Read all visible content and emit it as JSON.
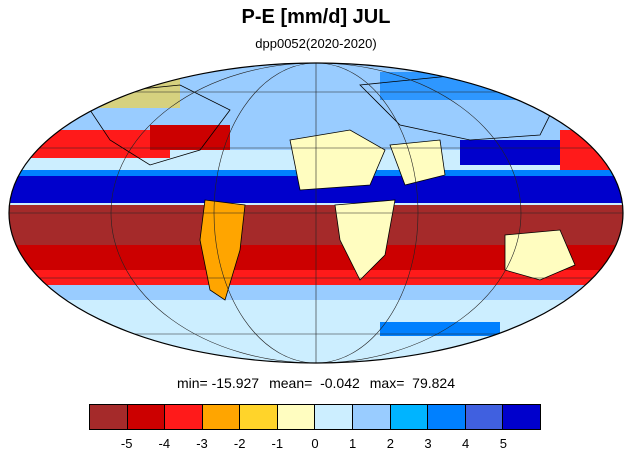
{
  "title": "P-E [mm/d] JUL",
  "subtitle": "dpp0052(2020-2020)",
  "stats": {
    "min": "min= -15.927",
    "mean": "mean=  -0.042",
    "max": "max=  79.824"
  },
  "colors": {
    "ocean_dry": "#a52a2a",
    "ocean_wet": "#0000cc",
    "land_arid": "#fffdc0",
    "coast": "#000000"
  },
  "colorbar": {
    "colors": [
      "#a52a2a",
      "#cc0000",
      "#ff1a1a",
      "#ffa500",
      "#ffd42a",
      "#fffdc0",
      "#cceeff",
      "#99ccff",
      "#00b4ff",
      "#0080ff",
      "#4060e0",
      "#0000cc"
    ],
    "labels": [
      "-5",
      "-4",
      "-3",
      "-2",
      "-1",
      "0",
      "1",
      "2",
      "3",
      "4",
      "5"
    ]
  }
}
